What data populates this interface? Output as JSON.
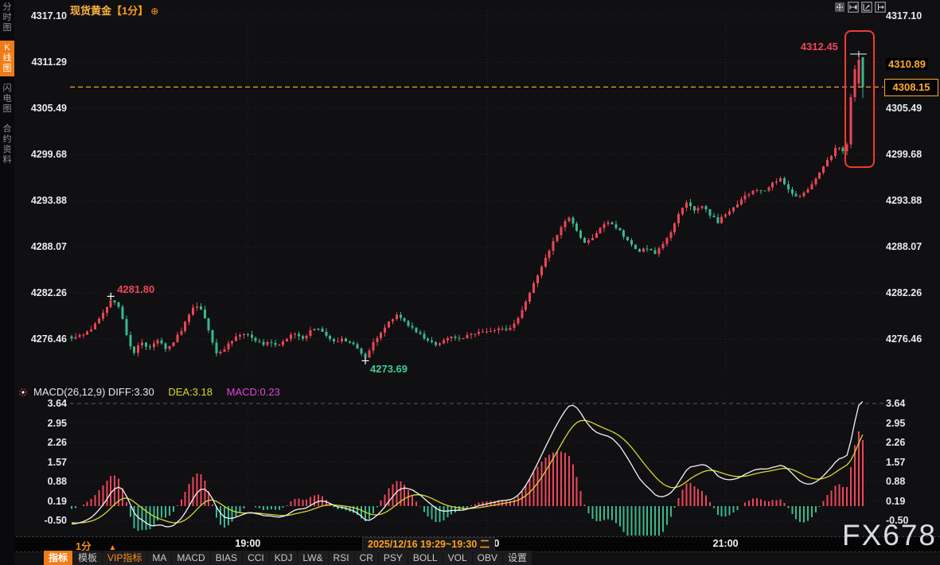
{
  "header": {
    "title": "现货黄金",
    "interval_tag": "【1分】",
    "plus_icon": "⊕"
  },
  "sidebar": {
    "tabs": [
      {
        "label": "分时图",
        "active": false
      },
      {
        "label": "K线图",
        "active": true
      },
      {
        "label": "闪电图",
        "active": false
      },
      {
        "label": "合约资料",
        "active": false
      }
    ]
  },
  "top_toolbar_icons": [
    "crosshair-icon",
    "fit-x-axis-icon",
    "fit-y-axis-icon",
    "pan-right-icon"
  ],
  "colors": {
    "up": "#ef4457",
    "down": "#38b98c",
    "accent_orange": "#ff9a1e",
    "diff_line": "#f2f3f5",
    "dea_line": "#d7d62f",
    "macd_value": "#e143e1",
    "highlight_box": "#f23a2e",
    "axis_text": "#e9eaec",
    "grid": "#2a2a2d"
  },
  "chart_data": {
    "type": "candlestick",
    "symbol": "现货黄金",
    "interval": "1分",
    "indicator": "MACD(26,12,9)",
    "y_axis": {
      "labels": [
        "4317.10",
        "4311.29",
        "4305.49",
        "4299.68",
        "4293.88",
        "4288.07",
        "4282.26",
        "4276.46"
      ],
      "top_price": 4317.1,
      "step": 5.81
    },
    "macd_axis": {
      "labels": [
        "3.64",
        "2.95",
        "2.26",
        "1.57",
        "0.88",
        "0.19",
        "-0.50"
      ],
      "top_value": 3.64,
      "step": 0.69
    },
    "hist_multiplier": 2,
    "warmup_anchor_closes": [
      [
        0,
        4279.8
      ],
      [
        12,
        4278.6
      ],
      [
        22,
        4277.3
      ],
      [
        29,
        4276.7
      ]
    ],
    "anchor_closes": [
      [
        0,
        4276.6
      ],
      [
        2,
        4276.9
      ],
      [
        4,
        4277.3
      ],
      [
        6,
        4278.2
      ],
      [
        8,
        4279.6
      ],
      [
        10,
        4281.3
      ],
      [
        11,
        4281.0
      ],
      [
        12,
        4280.4
      ],
      [
        13,
        4278.9
      ],
      [
        14,
        4276.8
      ],
      [
        15,
        4275.3
      ],
      [
        16,
        4274.8
      ],
      [
        17,
        4275.5
      ],
      [
        18,
        4275.8
      ],
      [
        20,
        4275.2
      ],
      [
        22,
        4276.4
      ],
      [
        24,
        4275.2
      ],
      [
        26,
        4276.1
      ],
      [
        28,
        4277.6
      ],
      [
        30,
        4279.4
      ],
      [
        31,
        4280.2
      ],
      [
        32,
        4280.6
      ],
      [
        33,
        4280.1
      ],
      [
        34,
        4279.0
      ],
      [
        35,
        4277.4
      ],
      [
        36,
        4275.9
      ],
      [
        37,
        4274.7
      ],
      [
        38,
        4274.9
      ],
      [
        39,
        4275.3
      ],
      [
        41,
        4276.3
      ],
      [
        43,
        4276.9
      ],
      [
        45,
        4277.1
      ],
      [
        47,
        4276.2
      ],
      [
        49,
        4275.7
      ],
      [
        51,
        4276.0
      ],
      [
        53,
        4275.5
      ],
      [
        55,
        4276.5
      ],
      [
        57,
        4277.2
      ],
      [
        59,
        4276.5
      ],
      [
        61,
        4277.4
      ],
      [
        63,
        4277.8
      ],
      [
        65,
        4276.7
      ],
      [
        67,
        4276.0
      ],
      [
        69,
        4276.4
      ],
      [
        71,
        4276.1
      ],
      [
        73,
        4275.2
      ],
      [
        75,
        4274.1
      ],
      [
        76,
        4275.1
      ],
      [
        78,
        4276.6
      ],
      [
        80,
        4278.0
      ],
      [
        82,
        4279.1
      ],
      [
        83,
        4279.6
      ],
      [
        85,
        4278.7
      ],
      [
        87,
        4277.7
      ],
      [
        89,
        4276.9
      ],
      [
        91,
        4276.3
      ],
      [
        93,
        4275.8
      ],
      [
        95,
        4276.1
      ],
      [
        97,
        4276.6
      ],
      [
        99,
        4276.4
      ],
      [
        101,
        4276.9
      ],
      [
        103,
        4277.1
      ],
      [
        105,
        4277.4
      ],
      [
        107,
        4277.3
      ],
      [
        109,
        4277.7
      ],
      [
        111,
        4277.5
      ],
      [
        113,
        4278.3
      ],
      [
        115,
        4280.0
      ],
      [
        117,
        4282.3
      ],
      [
        119,
        4284.5
      ],
      [
        121,
        4286.5
      ],
      [
        123,
        4288.6
      ],
      [
        125,
        4290.5
      ],
      [
        126,
        4291.3
      ],
      [
        127,
        4291.9
      ],
      [
        128,
        4291.0
      ],
      [
        129,
        4290.0
      ],
      [
        130,
        4289.0
      ],
      [
        131,
        4288.6
      ],
      [
        133,
        4289.2
      ],
      [
        135,
        4290.3
      ],
      [
        137,
        4291.2
      ],
      [
        139,
        4290.5
      ],
      [
        141,
        4289.4
      ],
      [
        143,
        4288.2
      ],
      [
        145,
        4287.4
      ],
      [
        147,
        4287.9
      ],
      [
        149,
        4287.2
      ],
      [
        151,
        4288.3
      ],
      [
        153,
        4290.0
      ],
      [
        155,
        4292.2
      ],
      [
        157,
        4293.5
      ],
      [
        159,
        4292.7
      ],
      [
        161,
        4293.2
      ],
      [
        163,
        4292.1
      ],
      [
        165,
        4291.1
      ],
      [
        167,
        4292.2
      ],
      [
        169,
        4293.0
      ],
      [
        171,
        4294.0
      ],
      [
        173,
        4294.8
      ],
      [
        175,
        4295.3
      ],
      [
        177,
        4295.0
      ],
      [
        179,
        4296.0
      ],
      [
        181,
        4296.8
      ],
      [
        183,
        4295.3
      ],
      [
        185,
        4294.3
      ],
      [
        187,
        4294.7
      ],
      [
        189,
        4295.8
      ],
      [
        191,
        4297.2
      ],
      [
        193,
        4299.0
      ],
      [
        195,
        4300.3
      ],
      [
        196,
        4300.6
      ],
      [
        197,
        4300.2
      ],
      [
        198,
        4301.0
      ]
    ],
    "special_candles": {
      "199": [
        4300.9,
        4307.3,
        4300.4,
        4306.9
      ],
      "200": [
        4306.9,
        4310.9,
        4306.3,
        4310.4
      ],
      "201": [
        4308.6,
        4312.45,
        4308.2,
        4311.6
      ],
      "202": [
        4311.9,
        4311.95,
        4306.8,
        4308.15
      ]
    },
    "exact_close_indices": [
      10,
      75
    ],
    "candle_count": 203,
    "macd_header": {
      "formula_and_diff": "MACD(26,12,9) DIFF:3.30",
      "dea": "DEA:3.18",
      "macd": "MACD:0.23"
    }
  },
  "annotations": {
    "swing_high": {
      "index": 10,
      "price": 4281.8,
      "label": "4281.80"
    },
    "swing_low": {
      "index": 75,
      "price": 4273.69,
      "label": "4273.69"
    },
    "session_high": {
      "index": 201,
      "price": 4312.45,
      "label": "4312.45"
    },
    "highlight_box": {
      "start_index": 199,
      "end_index": 202,
      "price_top": 4315.3,
      "price_bottom": 4298.4
    },
    "current_price": {
      "price": 4308.15,
      "label": "4308.15"
    },
    "bid_marker": {
      "price": 4310.89,
      "label": "4310.89"
    }
  },
  "time_axis": {
    "interval_label": "1分",
    "interval_arrow": "▲",
    "ticks": [
      {
        "text": "19:00",
        "index": 45
      },
      {
        "text": "20:00",
        "index": 106
      },
      {
        "text": "21:00",
        "index": 167
      }
    ],
    "highlight": "2025/12/16 19:29~19:30 二"
  },
  "bottom_toolbar": {
    "tabs": [
      {
        "label": "指标",
        "active": true
      },
      {
        "label": "模板"
      },
      {
        "label": "VIP指标",
        "vip": true
      },
      {
        "label": "MA"
      },
      {
        "label": "MACD"
      },
      {
        "label": "BIAS"
      },
      {
        "label": "CCI"
      },
      {
        "label": "KDJ"
      },
      {
        "label": "LW&"
      },
      {
        "label": "RSI"
      },
      {
        "label": "CR"
      },
      {
        "label": "PSY"
      },
      {
        "label": "BOLL"
      },
      {
        "label": "VOL"
      },
      {
        "label": "OBV"
      },
      {
        "label": "设置"
      }
    ]
  },
  "watermark": "FX678"
}
